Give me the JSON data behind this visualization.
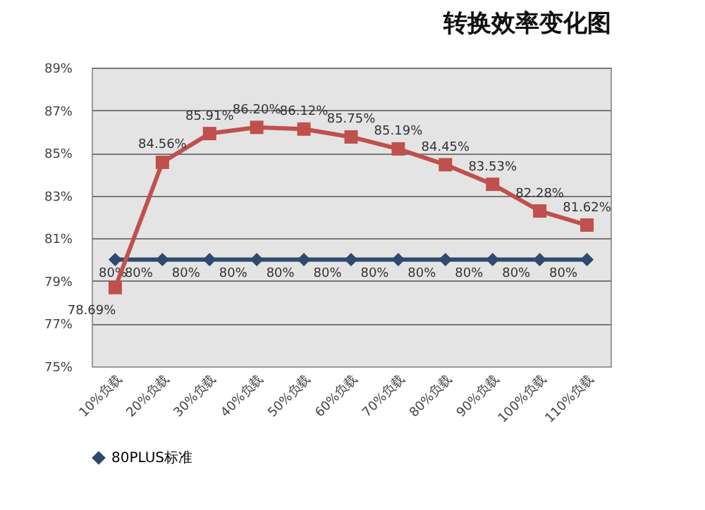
{
  "chart_data": {
    "type": "line",
    "title": "转换效率变化图",
    "categories": [
      "10%负载",
      "20%负载",
      "30%负载",
      "40%负载",
      "50%负载",
      "60%负载",
      "70%负载",
      "80%负载",
      "90%负载",
      "100%负载",
      "110%负载"
    ],
    "series": [
      {
        "name": "80PLUS标准",
        "color": "#2e4a6e",
        "marker": "diamond",
        "values": [
          80,
          80,
          80,
          80,
          80,
          80,
          80,
          80,
          80,
          80,
          80
        ],
        "value_labels": [
          "80%",
          "80%",
          "80%",
          "80%",
          "80%",
          "80%",
          "80%",
          "80%",
          "80%",
          "80%",
          "80%"
        ]
      },
      {
        "color": "#c0504d",
        "marker": "square",
        "values": [
          78.69,
          84.56,
          85.91,
          86.2,
          86.12,
          85.75,
          85.19,
          84.45,
          83.53,
          82.28,
          81.62
        ],
        "value_labels": [
          "78.69%",
          "84.56%",
          "85.91%",
          "86.20%",
          "86.12%",
          "85.75%",
          "85.19%",
          "84.45%",
          "83.53%",
          "82.28%",
          "81.62%"
        ]
      }
    ],
    "ylim": [
      75,
      89
    ],
    "yticks": [
      {
        "value": 75,
        "label": "75%"
      },
      {
        "value": 77,
        "label": "77%"
      },
      {
        "value": 79,
        "label": "79%"
      },
      {
        "value": 81,
        "label": "81%"
      },
      {
        "value": 83,
        "label": "83%"
      },
      {
        "value": 85,
        "label": "85%"
      },
      {
        "value": 87,
        "label": "87%"
      },
      {
        "value": 89,
        "label": "89%"
      }
    ],
    "grid": "y",
    "legend": "bottom",
    "line_style": "solid"
  }
}
